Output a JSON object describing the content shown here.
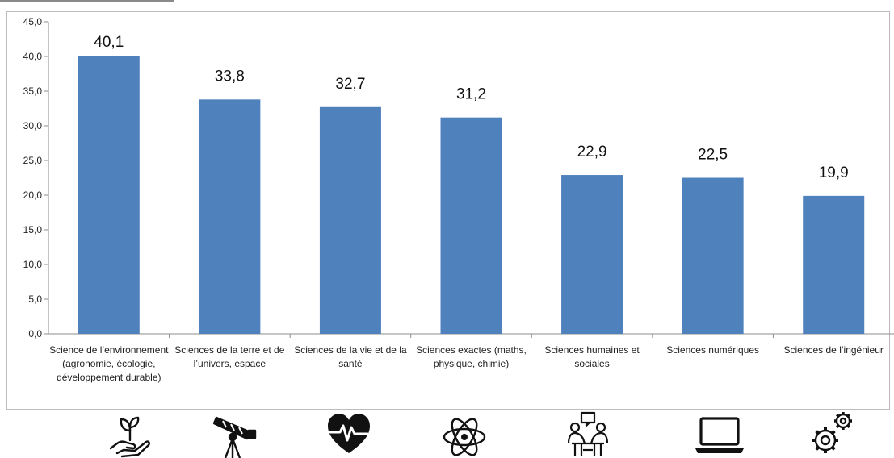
{
  "chart_data": {
    "type": "bar",
    "title": "",
    "xlabel": "",
    "ylabel": "",
    "ylim": [
      0,
      45
    ],
    "yticks": [
      "0,0",
      "5,0",
      "10,0",
      "15,0",
      "20,0",
      "25,0",
      "30,0",
      "35,0",
      "40,0",
      "45,0"
    ],
    "categories": [
      "Science de l’environnement (agronomie, écologie, développement durable)",
      "Sciences de la terre et de l’univers, espace",
      "Sciences de la vie et de la santé",
      "Sciences exactes (maths, physique, chimie)",
      "Sciences humaines et sociales",
      "Sciences numériques",
      "Sciences de l’ingénieur"
    ],
    "values": [
      40.1,
      33.8,
      32.7,
      31.2,
      22.9,
      22.5,
      19.9
    ],
    "data_labels": [
      "40,1",
      "33,8",
      "32,7",
      "31,2",
      "22,9",
      "22,5",
      "19,9"
    ],
    "bar_color": "#4f81bd",
    "grid": false,
    "legend": "none"
  },
  "icons": [
    "plant-in-hand-icon",
    "telescope-icon",
    "heartbeat-icon",
    "atom-icon",
    "people-meeting-icon",
    "laptop-icon",
    "gears-icon"
  ]
}
